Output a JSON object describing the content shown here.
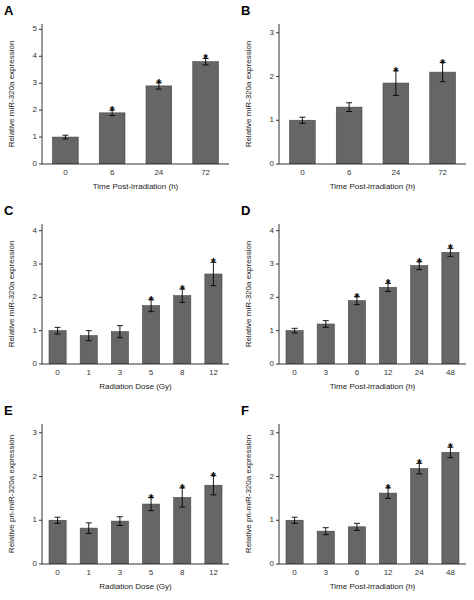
{
  "chart_data": [
    {
      "type": "bar",
      "title": "A",
      "categories": [
        "0",
        "6",
        "24",
        "72"
      ],
      "values": [
        1.0,
        1.9,
        2.9,
        3.8
      ],
      "errors": [
        0.07,
        0.1,
        0.12,
        0.12
      ],
      "annotations": [
        {
          "category": "6",
          "text": "*"
        },
        {
          "category": "24",
          "text": "*"
        },
        {
          "category": "72",
          "text": "*"
        }
      ],
      "x_label": "Time Post-irradiation (h)",
      "y_label": "Relative miR-320a expression",
      "ylim": [
        0,
        5.2
      ],
      "yticks": [
        0,
        1,
        2,
        3,
        4,
        5
      ],
      "color": "#666666",
      "grid": false
    },
    {
      "type": "bar",
      "title": "B",
      "categories": [
        "0",
        "6",
        "24",
        "72"
      ],
      "values": [
        1.0,
        1.3,
        1.85,
        2.1
      ],
      "errors": [
        0.07,
        0.1,
        0.28,
        0.22
      ],
      "annotations": [
        {
          "category": "24",
          "text": "*"
        },
        {
          "category": "72",
          "text": "*"
        }
      ],
      "x_label": "Time Post-irradiation (h)",
      "y_label": "Relative miR-320a expression",
      "ylim": [
        0,
        3.2
      ],
      "yticks": [
        0,
        1,
        2,
        3
      ],
      "color": "#666666",
      "grid": false
    },
    {
      "type": "bar",
      "title": "C",
      "categories": [
        "0",
        "1",
        "3",
        "5",
        "8",
        "12"
      ],
      "values": [
        1.0,
        0.85,
        0.97,
        1.75,
        2.05,
        2.7
      ],
      "errors": [
        0.1,
        0.15,
        0.18,
        0.18,
        0.2,
        0.35
      ],
      "annotations": [
        {
          "category": "5",
          "text": "*"
        },
        {
          "category": "8",
          "text": "*"
        },
        {
          "category": "12",
          "text": "*"
        }
      ],
      "x_label": "Radiation Dose (Gy)",
      "y_label": "Relative miR-320a expression",
      "ylim": [
        0,
        4.2
      ],
      "yticks": [
        0,
        1,
        2,
        3,
        4
      ],
      "color": "#666666",
      "grid": false
    },
    {
      "type": "bar",
      "title": "D",
      "categories": [
        "0",
        "3",
        "6",
        "12",
        "24",
        "48"
      ],
      "values": [
        1.0,
        1.2,
        1.9,
        2.3,
        2.95,
        3.35
      ],
      "errors": [
        0.07,
        0.1,
        0.12,
        0.12,
        0.12,
        0.12
      ],
      "annotations": [
        {
          "category": "6",
          "text": "*"
        },
        {
          "category": "12",
          "text": "*"
        },
        {
          "category": "24",
          "text": "*"
        },
        {
          "category": "48",
          "text": "*"
        }
      ],
      "x_label": "Time Post-irradiation (h)",
      "y_label": "Relative miR-320a expression",
      "ylim": [
        0,
        4.2
      ],
      "yticks": [
        0,
        1,
        2,
        3,
        4
      ],
      "color": "#666666",
      "grid": false
    },
    {
      "type": "bar",
      "title": "E",
      "categories": [
        "0",
        "1",
        "3",
        "5",
        "8",
        "12"
      ],
      "values": [
        1.0,
        0.82,
        0.98,
        1.37,
        1.52,
        1.8
      ],
      "errors": [
        0.07,
        0.12,
        0.1,
        0.15,
        0.22,
        0.22
      ],
      "annotations": [
        {
          "category": "5",
          "text": "*"
        },
        {
          "category": "8",
          "text": "*"
        },
        {
          "category": "12",
          "text": "*"
        }
      ],
      "x_label": "Radiation Dose (Gy)",
      "y_label": "Relative pri-miR-320a expression",
      "ylim": [
        0,
        3.2
      ],
      "yticks": [
        0,
        1,
        2,
        3
      ],
      "color": "#666666",
      "grid": false
    },
    {
      "type": "bar",
      "title": "F",
      "categories": [
        "0",
        "3",
        "6",
        "12",
        "24",
        "48"
      ],
      "values": [
        1.0,
        0.75,
        0.85,
        1.62,
        2.18,
        2.55
      ],
      "errors": [
        0.07,
        0.08,
        0.08,
        0.12,
        0.12,
        0.12
      ],
      "annotations": [
        {
          "category": "12",
          "text": "*"
        },
        {
          "category": "24",
          "text": "*"
        },
        {
          "category": "48",
          "text": "*"
        }
      ],
      "x_label": "Time Post-irradiation (h)",
      "y_label": "Relative pri-miR-320a expression",
      "ylim": [
        0,
        3.2
      ],
      "yticks": [
        0,
        1,
        2,
        3
      ],
      "color": "#666666",
      "grid": false
    }
  ]
}
